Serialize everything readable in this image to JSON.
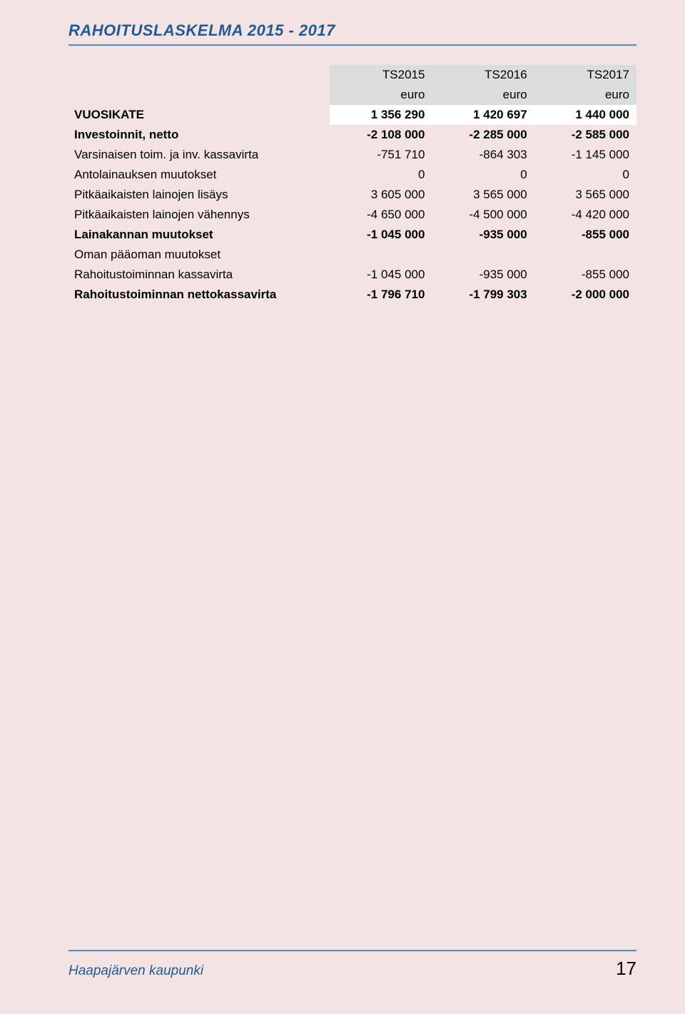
{
  "page": {
    "title": "RAHOITUSLASKELMA  2015 - 2017",
    "footer_left": "Haapajärven kaupunki",
    "footer_page": "17",
    "background_color": "#f4e3e3",
    "title_color": "#1f5a96",
    "rule_color": "#5a8fc2",
    "header_band_color": "#dcdcdc",
    "white_cell_color": "#ffffff",
    "body_fontsize": 17,
    "title_fontsize": 22,
    "footer_left_fontsize": 19,
    "footer_page_fontsize": 26
  },
  "headers": {
    "c1": "TS2015",
    "c2": "TS2016",
    "c3": "TS2017",
    "unit": "euro"
  },
  "rows": {
    "vuosikate": {
      "label": "VUOSIKATE",
      "v": [
        "1 356 290",
        "1 420 697",
        "1 440 000"
      ],
      "bold": true
    },
    "investoinnit": {
      "label": "Investoinnit, netto",
      "v": [
        "-2 108 000",
        "-2 285 000",
        "-2 585 000"
      ],
      "bold": true
    },
    "varsinaisen": {
      "label": "Varsinaisen toim. ja inv. kassavirta",
      "v": [
        "-751 710",
        "-864 303",
        "-1 145 000"
      ]
    },
    "antolain": {
      "label": "Antolainauksen muutokset",
      "v": [
        "0",
        "0",
        "0"
      ]
    },
    "pitka_lisays": {
      "label": "Pitkäaikaisten lainojen lisäys",
      "v": [
        "3 605 000",
        "3 565 000",
        "3 565 000"
      ]
    },
    "pitka_vahennys": {
      "label": "Pitkäaikaisten lainojen vähennys",
      "v": [
        "-4 650 000",
        "-4 500 000",
        "-4 420 000"
      ]
    },
    "lainakannan": {
      "label": "Lainakannan muutokset",
      "v": [
        "-1 045 000",
        "-935 000",
        "-855 000"
      ],
      "bold": true
    },
    "oman_paaoman": {
      "label": "Oman pääoman muutokset",
      "v": [
        "",
        "",
        ""
      ]
    },
    "rahoitustoiminnan_kv": {
      "label": "Rahoitustoiminnan kassavirta",
      "v": [
        "-1 045 000",
        "-935 000",
        "-855 000"
      ]
    },
    "nettokassavirta": {
      "label": "Rahoitustoiminnan nettokassavirta",
      "v": [
        "-1 796 710",
        "-1 799 303",
        "-2 000 000"
      ],
      "bold": true
    }
  }
}
